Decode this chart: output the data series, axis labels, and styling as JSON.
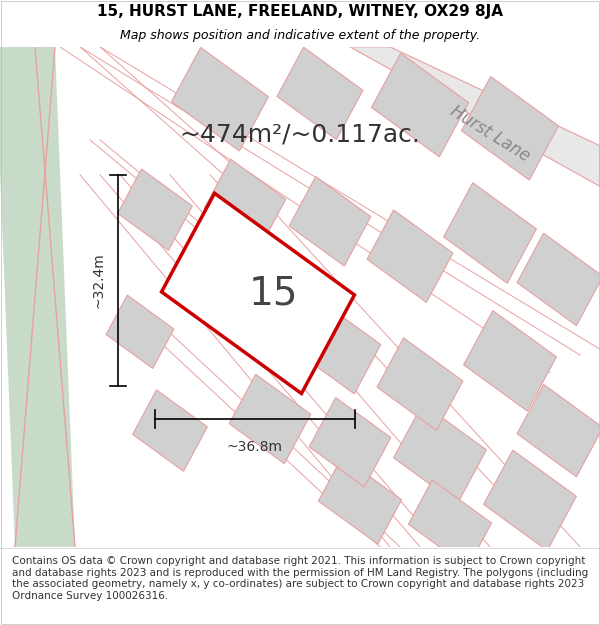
{
  "title_line1": "15, HURST LANE, FREELAND, WITNEY, OX29 8JA",
  "title_line2": "Map shows position and indicative extent of the property.",
  "area_text": "~474m²/~0.117ac.",
  "plot_number": "15",
  "dim_width": "~36.8m",
  "dim_height": "~32.4m",
  "road_label": "Hurst Lane",
  "footer_text": "Contains OS data © Crown copyright and database right 2021. This information is subject to Crown copyright and database rights 2023 and is reproduced with the permission of HM Land Registry. The polygons (including the associated geometry, namely x, y co-ordinates) are subject to Crown copyright and database rights 2023 Ordnance Survey 100026316.",
  "bg_color": "#f5f0eb",
  "map_bg": "#ffffff",
  "plot_fill": "#ffffff",
  "plot_stroke": "#cc0000",
  "building_fill": "#d0d0d0",
  "building_stroke": "#e8a0a0",
  "road_fill": "#c8dbc8",
  "road_stroke": "#e8a0a0",
  "footer_bg": "#ffffff",
  "title_fontsize": 11,
  "subtitle_fontsize": 9,
  "area_fontsize": 18,
  "plot_num_fontsize": 28,
  "dim_fontsize": 9,
  "road_fontsize": 12,
  "footer_fontsize": 7.5
}
